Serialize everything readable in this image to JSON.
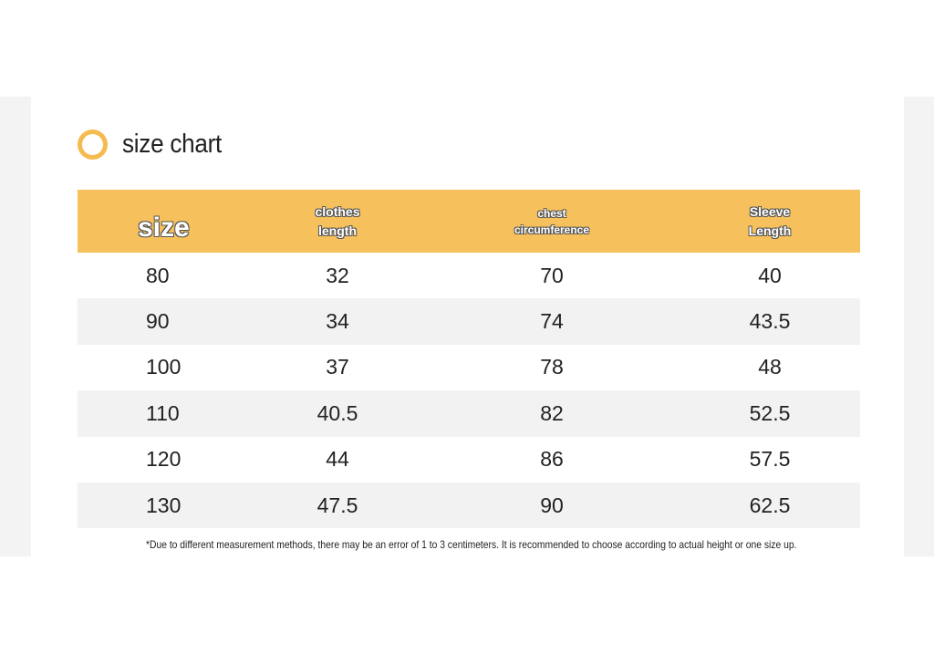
{
  "title": "size chart",
  "colors": {
    "accent": "#f6c15c",
    "ring": "#f5bb4f",
    "stripe": "#f2f2f2",
    "text": "#222222"
  },
  "table": {
    "headers": [
      [
        "size"
      ],
      [
        "clothes",
        "length"
      ],
      [
        "chest",
        "circumference"
      ],
      [
        "Sleeve",
        "Length"
      ]
    ],
    "rows": [
      [
        "80",
        "32",
        "70",
        "40"
      ],
      [
        "90",
        "34",
        "74",
        "43.5"
      ],
      [
        "100",
        "37",
        "78",
        "48"
      ],
      [
        "110",
        "40.5",
        "82",
        "52.5"
      ],
      [
        "120",
        "44",
        "86",
        "57.5"
      ],
      [
        "130",
        "47.5",
        "90",
        "62.5"
      ]
    ]
  },
  "note": "*Due to different measurement methods, there may be an error of 1 to 3 centimeters. It is recommended to choose according to actual height or one size up."
}
